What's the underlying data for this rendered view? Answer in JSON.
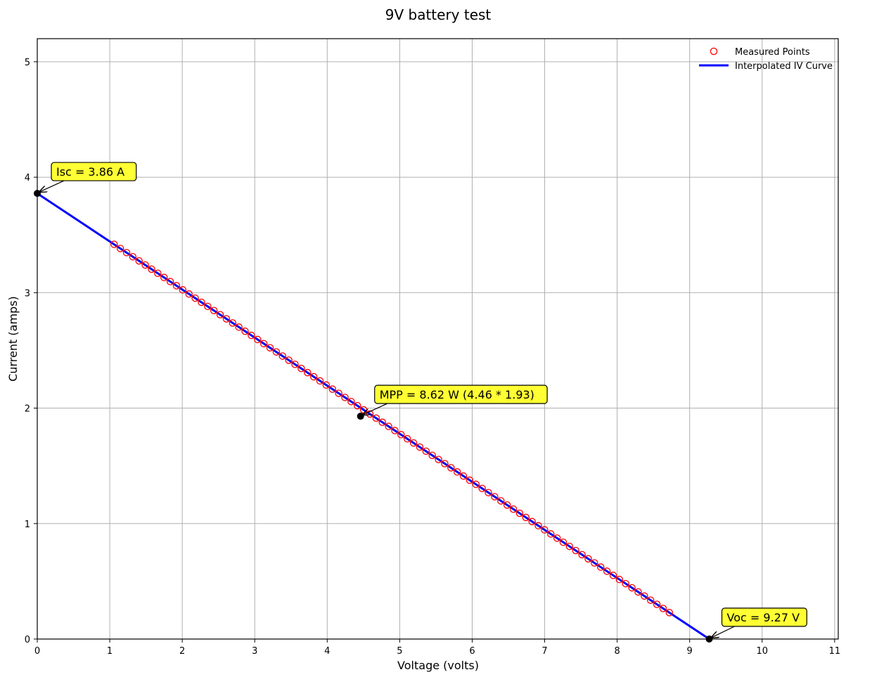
{
  "chart_data": {
    "type": "line",
    "title": "9V battery test",
    "xlabel": "Voltage (volts)",
    "ylabel": "Current (amps)",
    "xlim": [
      0,
      11.05
    ],
    "ylim": [
      0,
      5.2
    ],
    "xticks": [
      "0",
      "1",
      "2",
      "3",
      "4",
      "5",
      "6",
      "7",
      "8",
      "9",
      "10",
      "11"
    ],
    "yticks": [
      "0",
      "1",
      "2",
      "3",
      "4",
      "5"
    ],
    "grid": true,
    "legend_position": "top-right",
    "series": [
      {
        "name": "Measured Points",
        "style": "open-circle-markers",
        "color": "#ff0000",
        "x_start": 1.06,
        "x_end": 8.72,
        "count": 90,
        "line_equation": "I = 3.86 * (1 - V / 9.27)"
      },
      {
        "name": "Interpolated IV Curve",
        "style": "line",
        "color": "#0000ff",
        "x": [
          0,
          9.27
        ],
        "y": [
          3.86,
          0
        ]
      }
    ],
    "key_points": [
      {
        "id": "isc",
        "label": "Isc = 3.86 A",
        "x": 0,
        "y": 3.86
      },
      {
        "id": "mpp",
        "label": "MPP = 8.62 W (4.46 * 1.93)",
        "x": 4.46,
        "y": 1.93
      },
      {
        "id": "voc",
        "label": "Voc = 9.27 V",
        "x": 9.27,
        "y": 0
      }
    ],
    "annotation_color": "#ffff33"
  }
}
